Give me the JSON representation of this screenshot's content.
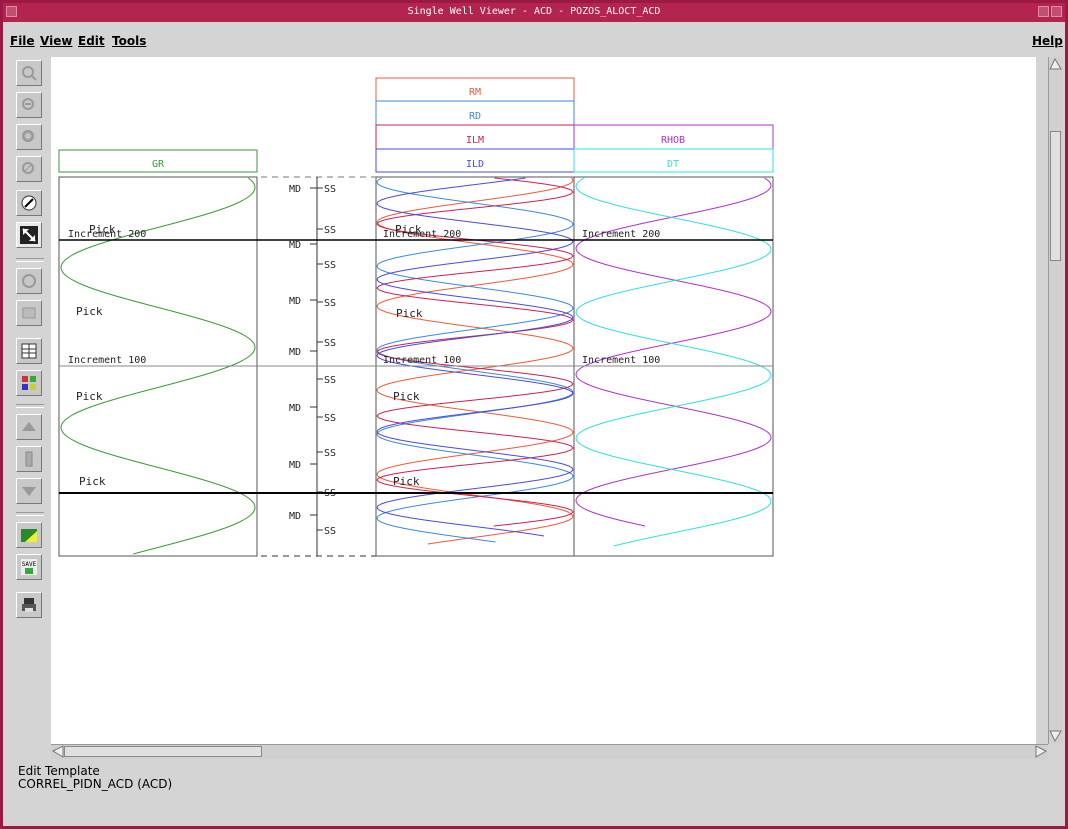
{
  "window": {
    "title": "Single Well Viewer - ACD - POZOS_ALOCT_ACD"
  },
  "menu": {
    "file": "File",
    "view": "View",
    "edit": "Edit",
    "tools": "Tools",
    "help": "Help"
  },
  "toolbar_icons": [
    "zoom-in-icon",
    "zoom-out-icon",
    "zoom-fit-icon",
    "zoom-disabled-icon",
    "edit-pencil-icon",
    "resize-arrows-icon",
    "refresh-icon",
    "page-icon",
    "layout-grid-icon",
    "color-grid-icon",
    "scroll-up-icon",
    "well-icon",
    "scroll-down-icon",
    "color-folder-icon",
    "save-icon",
    "print-icon"
  ],
  "tracks": {
    "gr": {
      "header": "GR",
      "color": "#3a9a3a"
    },
    "depth": {
      "md": "MD",
      "ss": "SS"
    },
    "resistivity": {
      "headers": [
        {
          "label": "RM",
          "color": "#f05a3a"
        },
        {
          "label": "RD",
          "color": "#3a8ae0"
        },
        {
          "label": "ILM",
          "color": "#d02050"
        },
        {
          "label": "ILD",
          "color": "#4a4ae0"
        }
      ]
    },
    "density": {
      "headers": [
        {
          "label": "RHOB",
          "color": "#b030d0"
        },
        {
          "label": "DT",
          "color": "#30e0e0"
        }
      ]
    }
  },
  "markers": {
    "increment_200": "Increment 200",
    "increment_100": "Increment 100",
    "pick": "Pick"
  },
  "status": {
    "line1": "Edit Template",
    "line2": "CORREL_PIDN_ACD  (ACD)"
  }
}
